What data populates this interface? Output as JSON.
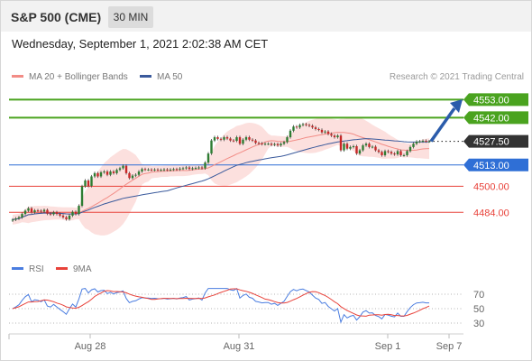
{
  "header": {
    "symbol": "S&P 500 (CME)",
    "timeframe": "30 MIN",
    "datetime": "Wednesday, September 1, 2021 2:02:38 AM CET"
  },
  "legend": {
    "ma20_label": "MA 20 + Bollinger Bands",
    "ma50_label": "MA 50",
    "credit": "Research © 2021 Trading Central",
    "rsi_label": "RSI",
    "ma9_label": "9MA"
  },
  "colors": {
    "green": "#4aa31f",
    "blue": "#2f6fd6",
    "red": "#e8423a",
    "dark": "#333333",
    "ma20": "#f28c86",
    "ma50": "#3a5a9c",
    "bollinger": "#fbd5d3",
    "arrow": "#2b5cab"
  },
  "chart_data": [
    {
      "type": "candlestick",
      "ylim": [
        4472,
        4556
      ],
      "x_ticks": [
        "Aug 28",
        "Aug 31",
        "Sep 1",
        "Sep 7"
      ],
      "levels": [
        {
          "value": 4553.0,
          "label": "4553.00",
          "style": "resistance",
          "color": "#4aa31f"
        },
        {
          "value": 4542.0,
          "label": "4542.00",
          "style": "resistance",
          "color": "#4aa31f"
        },
        {
          "value": 4527.5,
          "label": "4527.50",
          "style": "current",
          "color": "#333333"
        },
        {
          "value": 4513.0,
          "label": "4513.00",
          "style": "support",
          "color": "#2f6fd6"
        },
        {
          "value": 4500.0,
          "label": "4500.00",
          "style": "support-minor",
          "color": "#e8423a"
        },
        {
          "value": 4484.0,
          "label": "4484.00",
          "style": "support-minor",
          "color": "#e8423a"
        }
      ],
      "series": [
        {
          "name": "MA 20 + Bollinger Bands"
        },
        {
          "name": "MA 50"
        }
      ],
      "close": [
        4479.5,
        4480.2,
        4481.0,
        4483.0,
        4485.0,
        4486.5,
        4484.0,
        4485.2,
        4485.0,
        4484.5,
        4485.5,
        4483.2,
        4482.8,
        4484.0,
        4483.0,
        4482.0,
        4481.0,
        4479.8,
        4482.0,
        4484.3,
        4483.0,
        4488.0,
        4500.0,
        4503.5,
        4500.2,
        4506.0,
        4508.0,
        4506.0,
        4508.5,
        4509.0,
        4507.0,
        4509.0,
        4508.0,
        4510.0,
        4511.0,
        4512.5,
        4508.0,
        4505.0,
        4506.5,
        4507.0,
        4509.0,
        4510.5,
        4510.2,
        4510.2,
        4510.0,
        4510.2,
        4510.0,
        4510.0,
        4510.3,
        4510.0,
        4510.2,
        4510.5,
        4510.3,
        4510.8,
        4511.0,
        4511.5,
        4510.6,
        4511.0,
        4511.2,
        4511.5,
        4511.0,
        4514.5,
        4520.0,
        4528.0,
        4530.0,
        4529.0,
        4528.5,
        4530.0,
        4529.2,
        4528.0,
        4527.8,
        4530.0,
        4526.0,
        4528.5,
        4530.0,
        4528.5,
        4528.0,
        4526.5,
        4526.2,
        4525.8,
        4526.0,
        4526.0,
        4525.3,
        4525.8,
        4525.0,
        4526.0,
        4527.0,
        4530.0,
        4534.0,
        4536.5,
        4536.0,
        4537.5,
        4538.0,
        4537.5,
        4537.0,
        4536.0,
        4535.0,
        4534.5,
        4533.0,
        4533.5,
        4532.0,
        4531.0,
        4530.0,
        4531.0,
        4522.0,
        4526.0,
        4523.0,
        4524.0,
        4524.5,
        4520.0,
        4522.0,
        4525.0,
        4526.0,
        4524.0,
        4524.2,
        4522.0,
        4521.0,
        4519.0,
        4521.5,
        4521.0,
        4520.0,
        4519.5,
        4521.5,
        4519.0,
        4519.0,
        4521.5,
        4524.0,
        4526.0,
        4527.3,
        4527.5,
        4527.8,
        4527.5,
        4527.5
      ],
      "open": [
        4479.0,
        4479.5,
        4480.2,
        4481.0,
        4483.0,
        4485.0,
        4486.5,
        4484.0,
        4485.2,
        4485.0,
        4484.5,
        4485.5,
        4483.2,
        4482.8,
        4484.0,
        4483.0,
        4482.0,
        4481.0,
        4479.8,
        4482.0,
        4484.3,
        4483.0,
        4488.0,
        4500.0,
        4503.5,
        4500.2,
        4506.0,
        4508.0,
        4506.0,
        4508.5,
        4509.0,
        4507.0,
        4509.0,
        4508.0,
        4510.0,
        4511.0,
        4512.5,
        4508.0,
        4505.0,
        4506.5,
        4507.0,
        4509.0,
        4510.5,
        4510.2,
        4510.2,
        4510.0,
        4510.2,
        4510.0,
        4510.0,
        4510.3,
        4510.0,
        4510.2,
        4510.5,
        4510.3,
        4510.8,
        4511.0,
        4511.5,
        4510.6,
        4511.0,
        4511.2,
        4511.5,
        4511.0,
        4514.5,
        4520.0,
        4528.0,
        4530.0,
        4529.0,
        4528.5,
        4530.0,
        4529.2,
        4528.0,
        4527.8,
        4530.0,
        4526.0,
        4528.5,
        4530.0,
        4528.5,
        4528.0,
        4526.5,
        4526.2,
        4525.8,
        4526.0,
        4526.0,
        4525.3,
        4525.8,
        4525.0,
        4526.0,
        4527.0,
        4530.0,
        4534.0,
        4536.5,
        4536.0,
        4537.5,
        4538.0,
        4537.5,
        4537.0,
        4536.0,
        4535.0,
        4534.5,
        4533.0,
        4533.5,
        4532.0,
        4531.0,
        4530.0,
        4531.0,
        4522.0,
        4526.0,
        4523.0,
        4524.0,
        4524.5,
        4520.0,
        4522.0,
        4525.0,
        4526.0,
        4524.0,
        4524.2,
        4522.0,
        4521.0,
        4519.0,
        4521.5,
        4521.0,
        4520.0,
        4519.5,
        4521.5,
        4519.0,
        4519.0,
        4521.5,
        4524.0,
        4526.0,
        4527.3,
        4527.5,
        4527.8,
        4527.5
      ]
    },
    {
      "type": "line",
      "ylim": [
        20,
        80
      ],
      "y_ticks": [
        70,
        50,
        30
      ],
      "series": [
        {
          "name": "RSI",
          "color": "#4a7de0"
        },
        {
          "name": "9MA",
          "color": "#e8423a"
        }
      ]
    }
  ]
}
